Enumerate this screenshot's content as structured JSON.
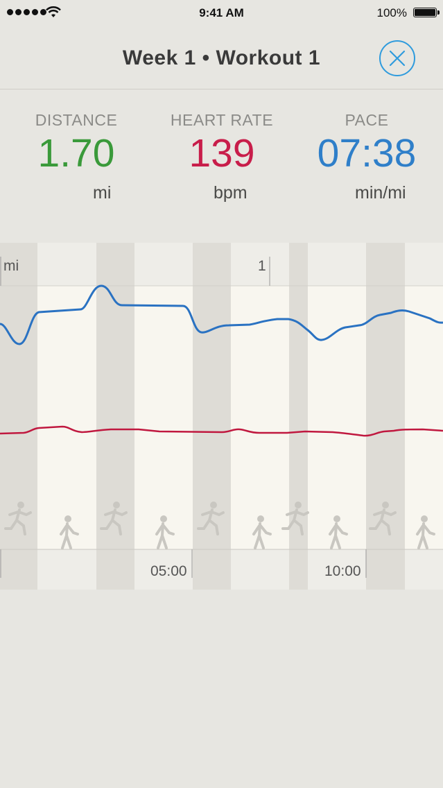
{
  "status_bar": {
    "time": "9:41 AM",
    "battery": "100%",
    "icons": [
      "signal-dots-icon",
      "wifi-icon",
      "battery-icon"
    ]
  },
  "nav": {
    "title": "Week 1 • Workout 1",
    "close_icon": "close-circle-icon"
  },
  "stats": {
    "distance": {
      "label": "DISTANCE",
      "value": "1.70",
      "unit": "mi",
      "color": "#3a9a3a"
    },
    "heart_rate": {
      "label": "HEART RATE",
      "value": "139",
      "unit": "bpm",
      "color": "#c81d4a"
    },
    "pace": {
      "label": "PACE",
      "value": "07:38",
      "unit": "min/mi",
      "color": "#2f7fc9"
    }
  },
  "chart": {
    "distance_axis_unit": "mi",
    "distance_marker": "1",
    "time_ticks": [
      "05:00",
      "10:00"
    ],
    "pace_color": "#2a72c2",
    "heart_color": "#c0183f",
    "segments": [
      "run",
      "walk",
      "run",
      "walk",
      "run",
      "walk",
      "run",
      "walk",
      "run",
      "walk"
    ],
    "segment_icons": [
      "running-figure-icon",
      "walking-figure-icon"
    ]
  }
}
